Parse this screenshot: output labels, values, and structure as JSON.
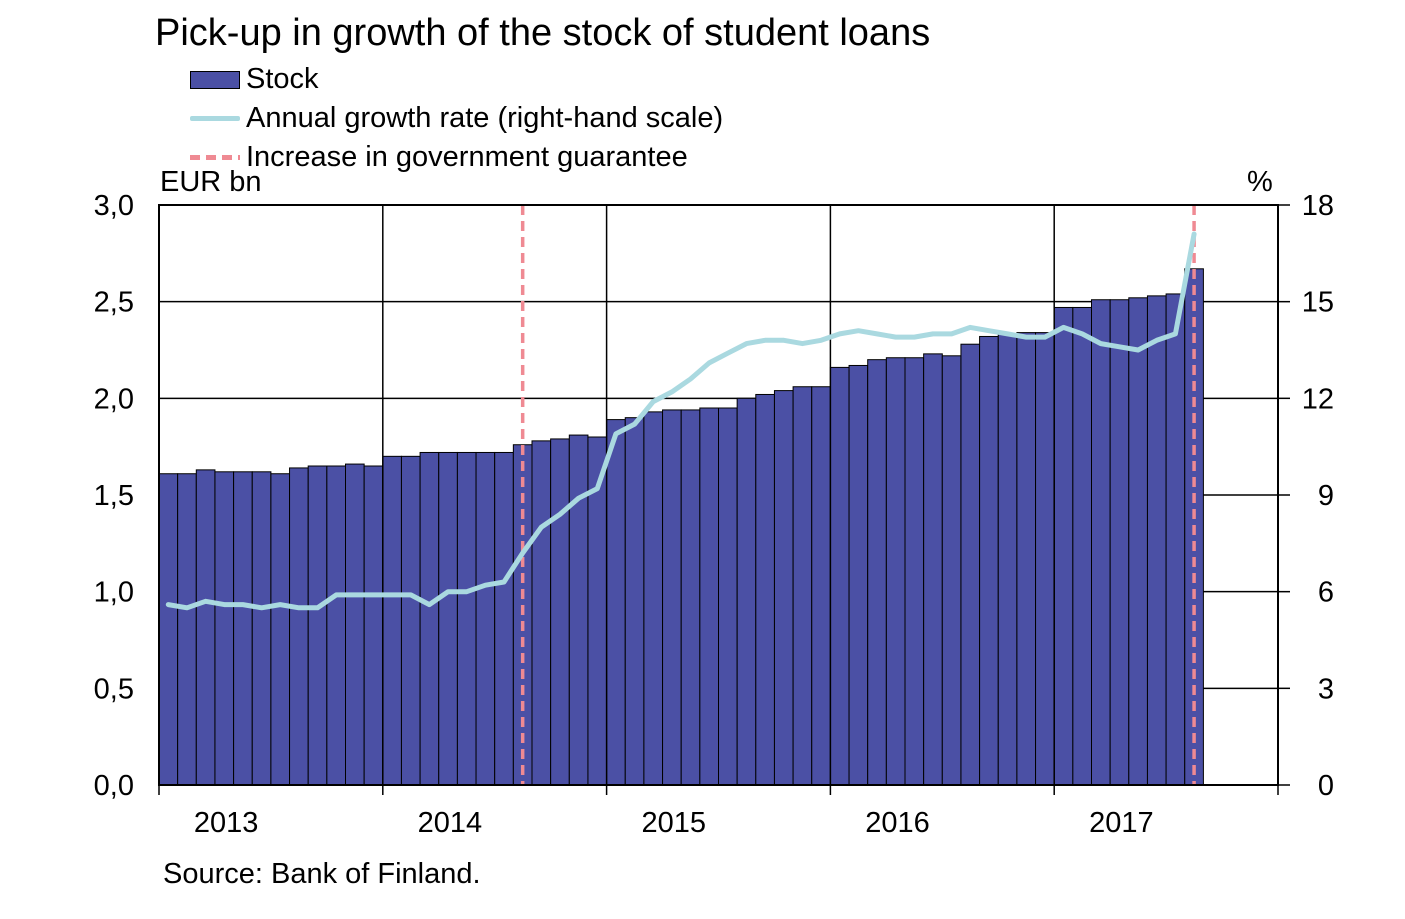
{
  "chart_data": {
    "type": "bar",
    "title": "Pick-up in growth of the stock of student loans",
    "left_unit": "EUR bn",
    "right_unit": "%",
    "source": "Source: Bank of Finland.",
    "x_tick_labels": [
      "2013",
      "2014",
      "2015",
      "2016",
      "2017"
    ],
    "y_left": {
      "min": 0,
      "max": 3,
      "ticks": [
        "0,0",
        "0,5",
        "1,0",
        "1,5",
        "2,0",
        "2,5",
        "3,0"
      ]
    },
    "y_right": {
      "min": 0,
      "max": 18,
      "ticks": [
        "0",
        "3",
        "6",
        "9",
        "12",
        "15",
        "18"
      ]
    },
    "grid": true,
    "legend_position": "top-left",
    "colors": {
      "bar": "#4b50a5",
      "line": "#aad9e0",
      "guarantee": "#ef8a93"
    },
    "legend": {
      "stock": "Stock",
      "growth": "Annual growth rate (right-hand scale)",
      "guarantee": "Increase in government guarantee"
    },
    "months": [
      "2013-01",
      "2013-02",
      "2013-03",
      "2013-04",
      "2013-05",
      "2013-06",
      "2013-07",
      "2013-08",
      "2013-09",
      "2013-10",
      "2013-11",
      "2013-12",
      "2014-01",
      "2014-02",
      "2014-03",
      "2014-04",
      "2014-05",
      "2014-06",
      "2014-07",
      "2014-08",
      "2014-09",
      "2014-10",
      "2014-11",
      "2014-12",
      "2015-01",
      "2015-02",
      "2015-03",
      "2015-04",
      "2015-05",
      "2015-06",
      "2015-07",
      "2015-08",
      "2015-09",
      "2015-10",
      "2015-11",
      "2015-12",
      "2016-01",
      "2016-02",
      "2016-03",
      "2016-04",
      "2016-05",
      "2016-06",
      "2016-07",
      "2016-08",
      "2016-09",
      "2016-10",
      "2016-11",
      "2016-12",
      "2017-01",
      "2017-02",
      "2017-03",
      "2017-04",
      "2017-05",
      "2017-06",
      "2017-07",
      "2017-08"
    ],
    "series": [
      {
        "name": "Stock",
        "axis": "left",
        "values": [
          1.61,
          1.61,
          1.63,
          1.62,
          1.62,
          1.62,
          1.61,
          1.64,
          1.65,
          1.65,
          1.66,
          1.65,
          1.7,
          1.7,
          1.72,
          1.72,
          1.72,
          1.72,
          1.72,
          1.76,
          1.78,
          1.79,
          1.81,
          1.8,
          1.89,
          1.9,
          1.93,
          1.94,
          1.94,
          1.95,
          1.95,
          2.0,
          2.02,
          2.04,
          2.06,
          2.06,
          2.16,
          2.17,
          2.2,
          2.21,
          2.21,
          2.23,
          2.22,
          2.28,
          2.32,
          2.33,
          2.34,
          2.34,
          2.47,
          2.47,
          2.51,
          2.51,
          2.52,
          2.53,
          2.54,
          2.67
        ]
      },
      {
        "name": "Annual growth rate (right-hand scale)",
        "axis": "right",
        "values": [
          5.6,
          5.5,
          5.7,
          5.6,
          5.6,
          5.5,
          5.6,
          5.5,
          5.5,
          5.9,
          5.9,
          5.9,
          5.9,
          5.9,
          5.6,
          6.0,
          6.0,
          6.2,
          6.3,
          7.2,
          8.0,
          8.4,
          8.9,
          9.2,
          10.9,
          11.2,
          11.9,
          12.2,
          12.6,
          13.1,
          13.4,
          13.7,
          13.8,
          13.8,
          13.7,
          13.8,
          14.0,
          14.1,
          14.0,
          13.9,
          13.9,
          14.0,
          14.0,
          14.2,
          14.1,
          14.0,
          13.9,
          13.9,
          14.2,
          14.0,
          13.7,
          13.6,
          13.5,
          13.8,
          14.0,
          17.1
        ]
      }
    ],
    "guarantee_lines": [
      "2014-08",
      "2017-08"
    ]
  }
}
